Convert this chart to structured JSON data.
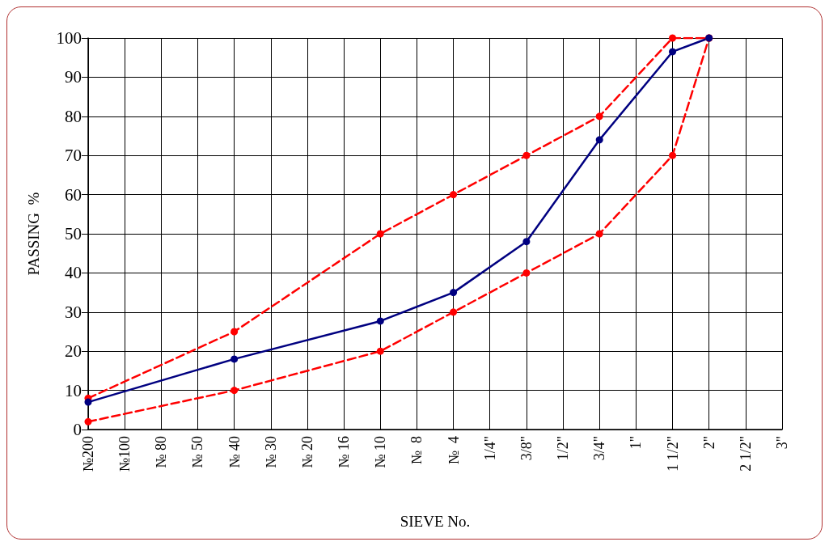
{
  "chart_data": {
    "type": "line",
    "xlabel": "SIEVE No.",
    "ylabel": "PASSING  %",
    "grid": true,
    "marker": "circle",
    "categories": [
      "№200",
      "№100",
      "№ 80",
      "№ 50",
      "№ 40",
      "№ 30",
      "№ 20",
      "№ 16",
      "№ 10",
      "№  8",
      "№  4",
      "1/4\"",
      "3/8\"",
      "1/2\"",
      "3/4\"",
      "1\"",
      "1 1/2\"",
      "2\"",
      "2 1/2\"",
      "3\""
    ],
    "ylim": [
      0,
      100
    ],
    "yticks": [
      0,
      10,
      20,
      30,
      40,
      50,
      60,
      70,
      80,
      90,
      100
    ],
    "series": [
      {
        "color": "#ff0000",
        "line_style": "dashed",
        "values": [
          8,
          null,
          null,
          null,
          25,
          null,
          null,
          null,
          50,
          null,
          60,
          null,
          70,
          null,
          80,
          null,
          100,
          100,
          null,
          null
        ]
      },
      {
        "color": "#ff0000",
        "line_style": "dashed",
        "values": [
          2,
          null,
          null,
          null,
          10,
          null,
          null,
          null,
          20,
          null,
          30,
          null,
          40,
          null,
          50,
          null,
          70,
          100,
          null,
          null
        ]
      },
      {
        "color": "#000080",
        "line_style": "solid",
        "values": [
          7,
          null,
          null,
          null,
          18,
          null,
          null,
          null,
          27.7,
          null,
          35,
          null,
          48,
          null,
          74,
          null,
          96.5,
          100,
          null,
          null
        ]
      }
    ]
  }
}
